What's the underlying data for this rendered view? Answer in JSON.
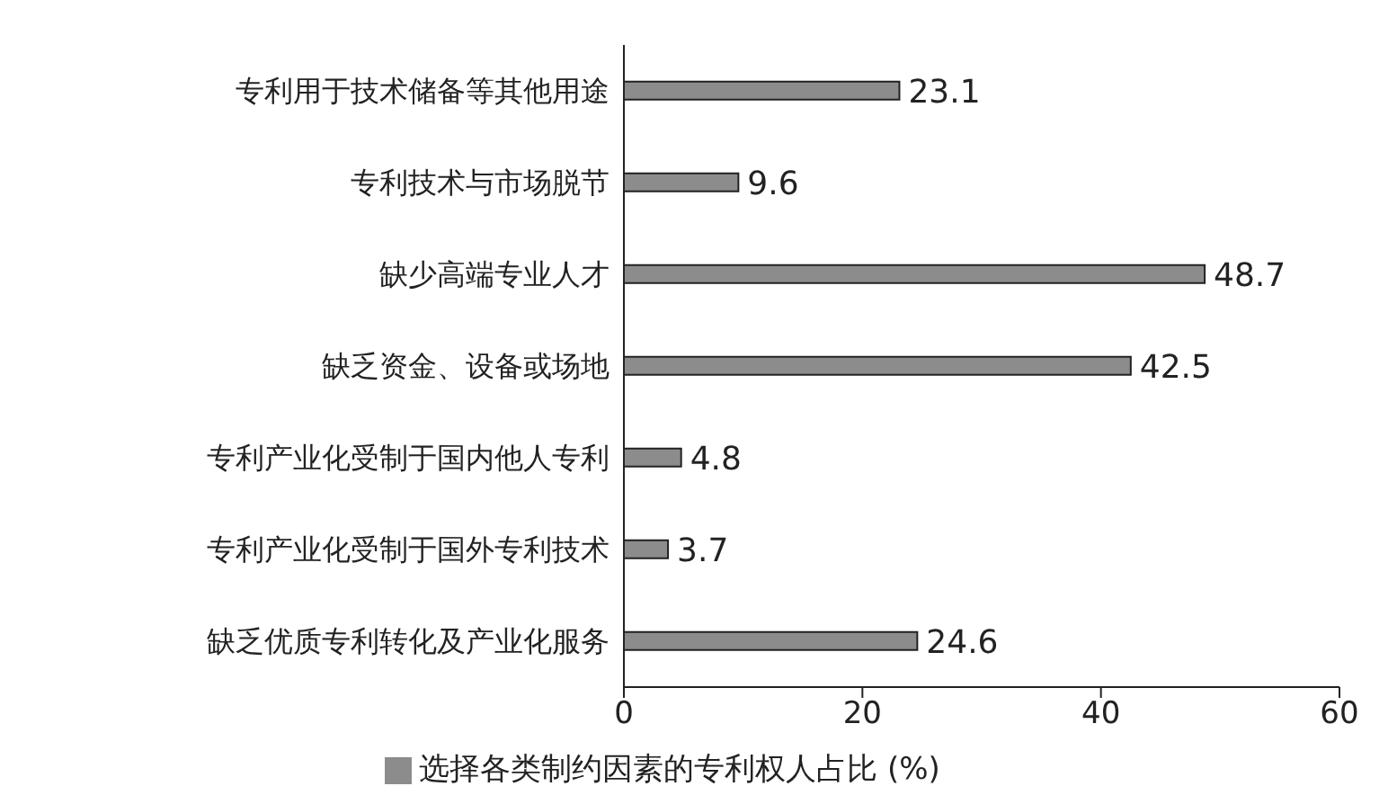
{
  "chart_data": {
    "type": "bar",
    "orientation": "horizontal",
    "categories": [
      "专利用于技术储备等其他用途",
      "专利技术与市场脱节",
      "缺少高端专业人才",
      "缺乏资金、设备或场地",
      "专利产业化受制于国内他人专利",
      "专利产业化受制于国外专利技术",
      "缺乏优质专利转化及产业化服务"
    ],
    "series": [
      {
        "name": "选择各类制约因素的专利权人占比 (%)",
        "color": "#8c8c8c",
        "values": [
          23.1,
          9.6,
          48.7,
          42.5,
          4.8,
          3.7,
          24.6
        ]
      }
    ],
    "xlim": [
      0,
      60
    ],
    "xticks": [
      0,
      20,
      40,
      60
    ],
    "grid": false,
    "legend": "bottom",
    "data_labels": true
  }
}
